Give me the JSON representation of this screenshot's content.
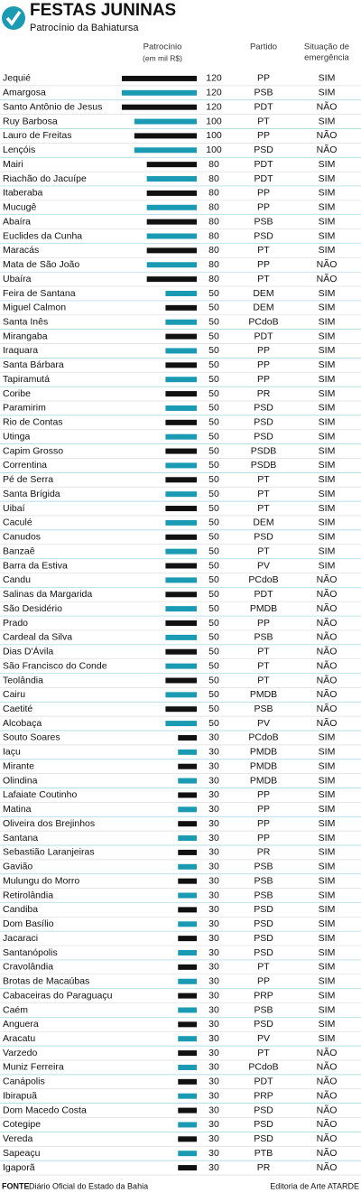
{
  "chart_data": {
    "type": "bar",
    "title": "FESTAS JUNINAS",
    "subtitle": "Patrocínio da Bahiatursa",
    "value_header": "Patrocínio",
    "value_unit": "(em mil R$)",
    "party_header": "Partido",
    "status_header": [
      "Situação de",
      "emergência"
    ],
    "source_label": "FONTE",
    "source": "Diário Oficial do Estado da Bahia",
    "credit": "Editoria de Arte ATARDE",
    "row_colors": [
      "#111111",
      "#1a9bb3"
    ],
    "xlim": [
      0,
      120
    ],
    "categories": [
      "Jequié",
      "Amargosa",
      "Santo Antônio de Jesus",
      "Ruy Barbosa",
      "Lauro de Freitas",
      "Lençóis",
      "Mairi",
      "Riachão do Jacuípe",
      "Itaberaba",
      "Mucugê",
      "Abaíra",
      "Euclides da Cunha",
      "Maracás",
      "Mata de São João",
      "Ubaíra",
      "Feira de Santana",
      "Miguel Calmon",
      "Santa Inês",
      "Mirangaba",
      "Iraquara",
      "Santa Bárbara",
      "Tapiramutá",
      "Coribe",
      "Paramirim",
      "Rio de Contas",
      "Utinga",
      "Capim Grosso",
      "Correntina",
      "Pé de Serra",
      "Santa Brígida",
      "Uibaí",
      "Caculé",
      "Canudos",
      "Banzaê",
      "Barra da Estiva",
      "Candu",
      "Salinas da Margarida",
      "São Desidério",
      "Prado",
      "Cardeal da Silva",
      "Dias D'Ávila",
      "São Francisco do Conde",
      "Teolândia",
      "Cairu",
      "Caetité",
      "Alcobaça",
      "Souto Soares",
      "Iaçu",
      "Mirante",
      "Olindina",
      "Lafaiate Coutinho",
      "Matina",
      "Oliveira dos Brejinhos",
      "Santana",
      "Sebastião Laranjeiras",
      "Gavião",
      "Mulungu do Morro",
      "Retirolândia",
      "Candiba",
      "Dom Basílio",
      "Jacaraci",
      "Santanópolis",
      "Cravolândia",
      "Brotas de Macaúbas",
      "Cabaceiras do Paraguaçu",
      "Caém",
      "Anguera",
      "Aracatu",
      "Varzedo",
      "Muniz Ferreira",
      "Canápolis",
      "Ibirapuã",
      "Dom Macedo Costa",
      "Cotegipe",
      "Vereda",
      "Sapeaçu",
      "Igaporã"
    ],
    "values": [
      120,
      120,
      120,
      100,
      100,
      100,
      80,
      80,
      80,
      80,
      80,
      80,
      80,
      80,
      80,
      50,
      50,
      50,
      50,
      50,
      50,
      50,
      50,
      50,
      50,
      50,
      50,
      50,
      50,
      50,
      50,
      50,
      50,
      50,
      50,
      50,
      50,
      50,
      50,
      50,
      50,
      50,
      50,
      50,
      50,
      50,
      30,
      30,
      30,
      30,
      30,
      30,
      30,
      30,
      30,
      30,
      30,
      30,
      30,
      30,
      30,
      30,
      30,
      30,
      30,
      30,
      30,
      30,
      30,
      30,
      30,
      30,
      30,
      30,
      30,
      30,
      30
    ],
    "party": [
      "PP",
      "PSB",
      "PDT",
      "PT",
      "PP",
      "PSD",
      "PDT",
      "PDT",
      "PP",
      "PP",
      "PSB",
      "PSD",
      "PT",
      "PP",
      "PT",
      "DEM",
      "DEM",
      "PCdoB",
      "PDT",
      "PP",
      "PP",
      "PP",
      "PR",
      "PSD",
      "PSD",
      "PSD",
      "PSDB",
      "PSDB",
      "PT",
      "PT",
      "PT",
      "DEM",
      "PSD",
      "PT",
      "PV",
      "PCdoB",
      "PDT",
      "PMDB",
      "PP",
      "PSB",
      "PT",
      "PT",
      "PT",
      "PMDB",
      "PSB",
      "PV",
      "PCdoB",
      "PMDB",
      "PMDB",
      "PMDB",
      "PP",
      "PP",
      "PP",
      "PP",
      "PR",
      "PSB",
      "PSB",
      "PSB",
      "PSD",
      "PSD",
      "PSD",
      "PSD",
      "PT",
      "PP",
      "PRP",
      "PSB",
      "PSD",
      "PV",
      "PT",
      "PCdoB",
      "PDT",
      "PRP",
      "PSD",
      "PSD",
      "PSD",
      "PTB",
      "PR"
    ],
    "emergency": [
      "SIM",
      "SIM",
      "NÃO",
      "SIM",
      "NÃO",
      "NÃO",
      "SIM",
      "SIM",
      "SIM",
      "SIM",
      "SIM",
      "SIM",
      "SIM",
      "NÃO",
      "NÃO",
      "SIM",
      "SIM",
      "SIM",
      "SIM",
      "SIM",
      "SIM",
      "SIM",
      "SIM",
      "SIM",
      "SIM",
      "SIM",
      "SIM",
      "SIM",
      "SIM",
      "SIM",
      "SIM",
      "SIM",
      "SIM",
      "SIM",
      "SIM",
      "NÃO",
      "NÃO",
      "NÃO",
      "NÃO",
      "NÃO",
      "NÃO",
      "NÃO",
      "NÃO",
      "NÃO",
      "NÃO",
      "NÃO",
      "SIM",
      "SIM",
      "SIM",
      "SIM",
      "SIM",
      "SIM",
      "SIM",
      "SIM",
      "SIM",
      "SIM",
      "SIM",
      "SIM",
      "SIM",
      "SIM",
      "SIM",
      "SIM",
      "SIM",
      "SIM",
      "SIM",
      "SIM",
      "SIM",
      "SIM",
      "NÃO",
      "NÃO",
      "NÃO",
      "NÃO",
      "NÃO",
      "NÃO",
      "NÃO",
      "NÃO",
      "NÃO"
    ]
  }
}
